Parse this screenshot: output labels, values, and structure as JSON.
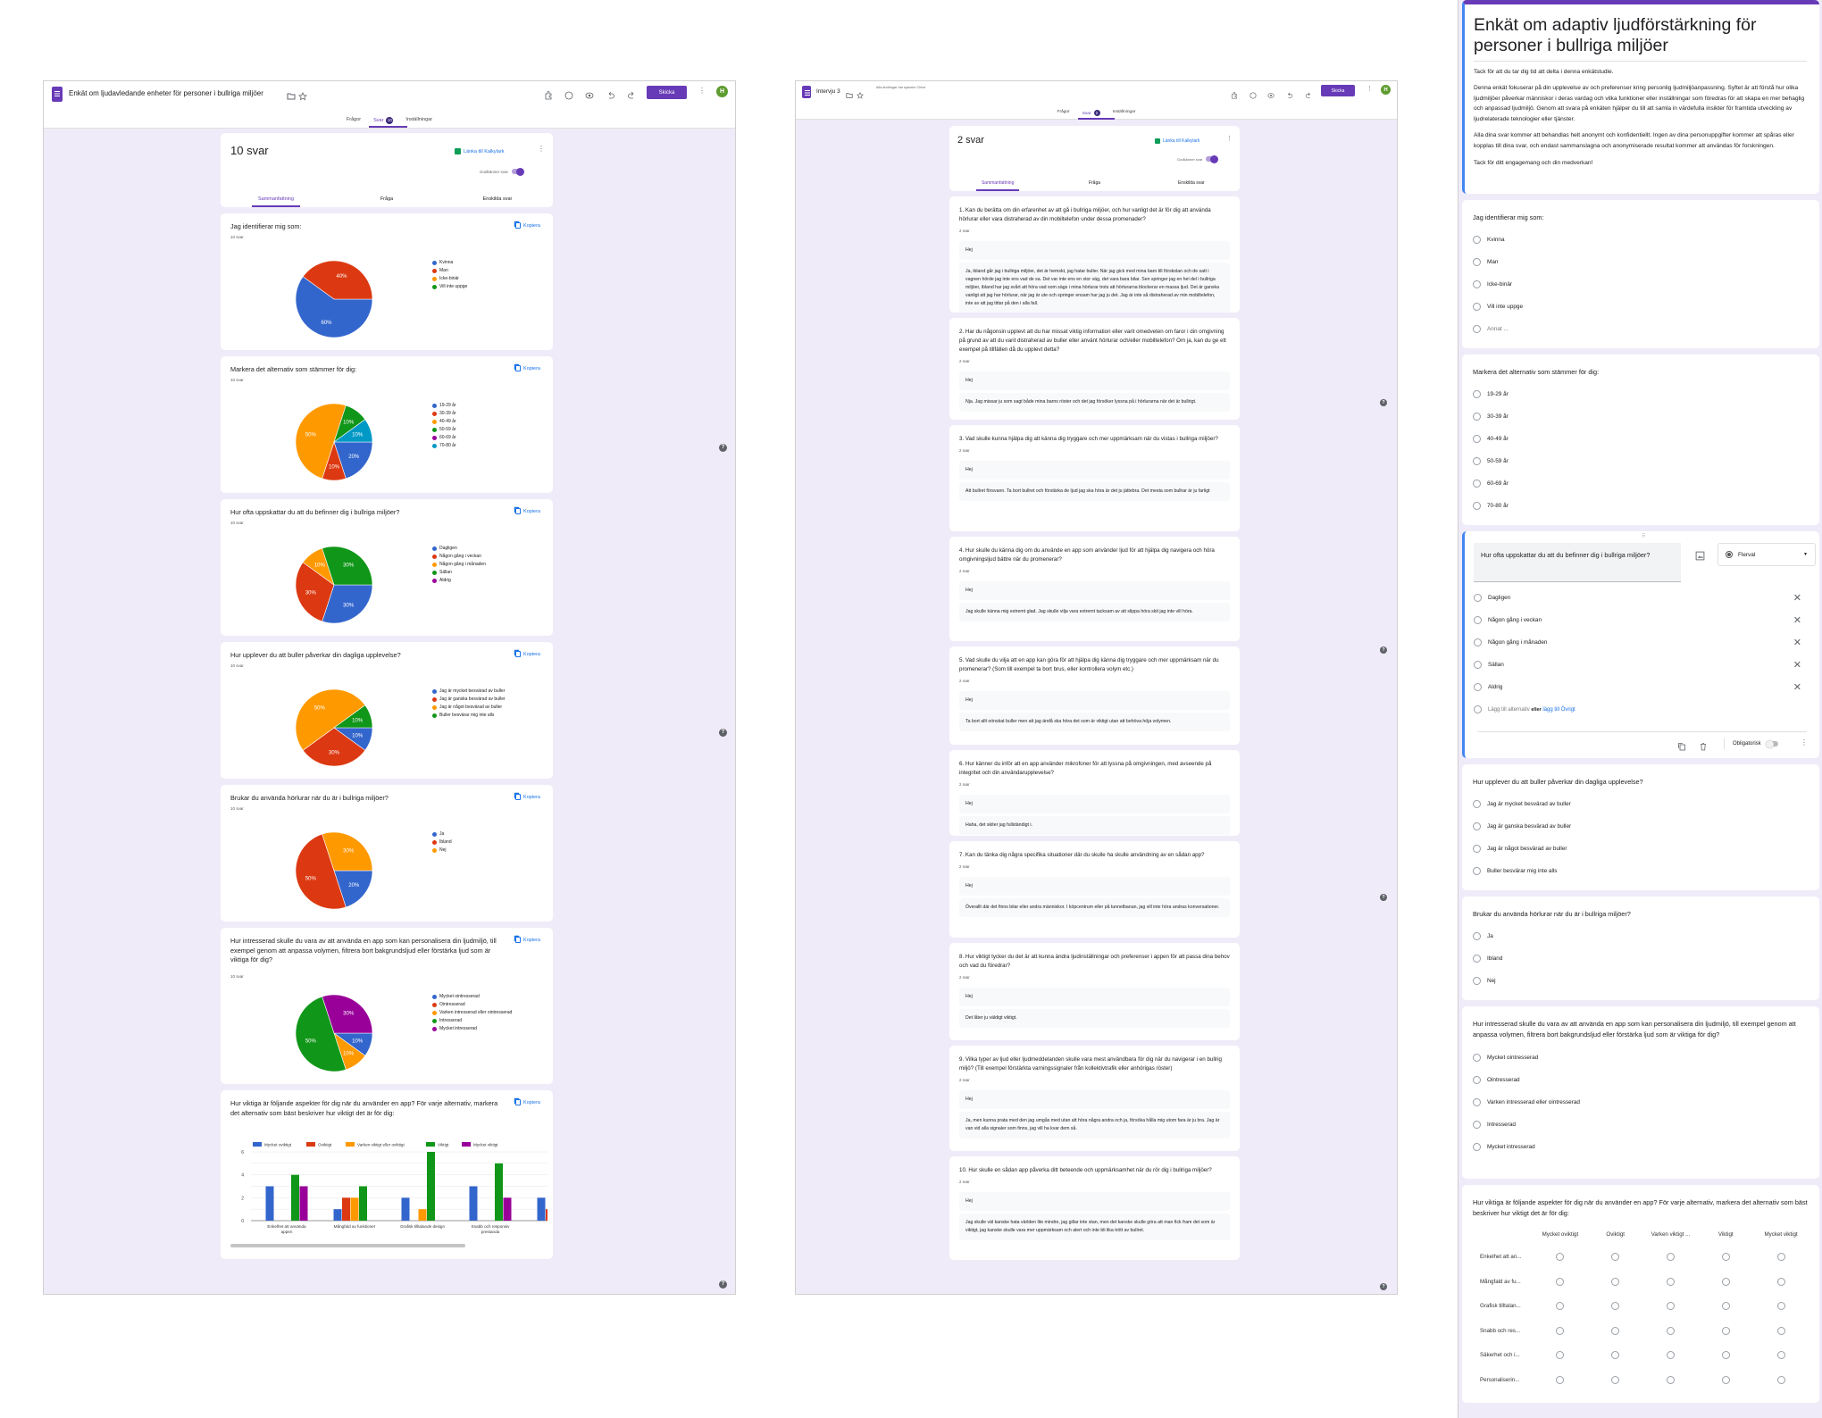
{
  "colors": {
    "accent": "#673ab7",
    "link": "#1a73e8",
    "background": "#f0ebf8",
    "active_border": "#4285f4",
    "series": [
      "#3366cc",
      "#dc3912",
      "#ff9900",
      "#109618",
      "#990099",
      "#0099c6"
    ]
  },
  "p1": {
    "title": "Enkät om ljudavledande enheter för personer i bullriga miljöer",
    "tabs": [
      "Frågor",
      "Svar",
      "Inställningar"
    ],
    "badge": "10",
    "send": "Skicka",
    "avatar": "H",
    "summary": {
      "count": "10 svar",
      "link": "Länka till Kalkylark",
      "accepting": "Godkänner svar",
      "subtabs": [
        "Sammanfattning",
        "Fråga",
        "Enskilda svar"
      ]
    },
    "copy": "Kopiera"
  },
  "p2": {
    "title": "Intervju 3",
    "saved": "Alla ändringar har sparats i Drive",
    "tabs": [
      "Frågor",
      "Svar",
      "Inställningar"
    ],
    "badge": "2",
    "send": "Skicka",
    "avatar": "H",
    "summary": {
      "count": "2 svar",
      "link": "Länka till Kalkylark",
      "accepting": "Godkänner svar",
      "subtabs": [
        "Sammanfattning",
        "Fråga",
        "Enskilda svar"
      ]
    },
    "questions": [
      {
        "q": "1. Kan du berätta om din erfarenhet av att gå i bullriga miljöer, och hur vanligt det är för dig att använda hörlurar eller vara distraherad av din mobiltelefon under dessa promenader?",
        "count": "2 svar",
        "responses": [
          "Hej",
          "Ja, ibland går jag i bullriga miljöer, det är hemskt, jag hatar buller. När jag gick med mina barn till förskolan och de satt i vagnen hörde jag inte ens vad de sa. Det var inte ens en stor väg, det vara bara bilar. Sen springer jag en hel del i bullriga miljöer, ibland har jag svårt att höra vad som sägs i mina hörlurar trots att hörlurarna blockerar en massa ljud. Det är ganska vanligt att jag har hörlurar, när jag är ute och springer ensam har jag ju det. Jag är inte så distraherad av min mobiltelefon, inte av att jag tittar på den i alla fall."
        ]
      },
      {
        "q": "2. Har du någonsin upplevt att du har missat viktig information eller varit omedveten om faror i din omgivning på grund av att du varit distraherad av buller eller använt hörlurar och/eller mobiltelefon? Om ja, kan du ge ett exempel på tillfällen då du upplevt detta?",
        "count": "2 svar",
        "responses": [
          "Hej",
          "Nja. Jag missar ju som sagt både mina barns röster och det jag försöker lyssna på i hörlurarna när det är bullrigt."
        ]
      },
      {
        "q": "3. Vad skulle kunna hjälpa dig att känna dig tryggare och mer uppmärksam när du vistas i bullriga miljöer?",
        "count": "2 svar",
        "responses": [
          "Hej",
          "Att bullret försvann. Ta bort bullret och förstärka de ljud jag ska höra är det ju jättebra. Det mesta som bullrar är ju farligt"
        ]
      },
      {
        "q": "4. Hur skulle du känna dig om du använde en app som använder ljud för att hjälpa dig navigera och höra omgivningsljud bättre när du promenerar?",
        "count": "2 svar",
        "responses": [
          "Hej",
          "Jag skulle känna mig extremt glad. Jag skulle vilja vara extremt tacksam av att slippa höra skit jag inte vill höra."
        ]
      },
      {
        "q": "5. Vad skulle du vilja att en app kan göra för att hjälpa dig känna dig tryggare och mer uppmärksam när du promenerar? (Som till exempel ta bort brus, eller kontrollera volym etc.)",
        "count": "2 svar",
        "responses": [
          "Hej",
          "Ta bort allt oönskat buller men att jag ändå ska höra det som är viktigt utan att behöva höja volymen."
        ]
      },
      {
        "q": "6. Hur känner du inför att en app använder mikrofoner för att lyssna på omgivningen, med avseende på integritet och din användarupplevelse?",
        "count": "2 svar",
        "responses": [
          "Hej",
          "Haha, det skiter jag fullständigt i."
        ]
      },
      {
        "q": "7. Kan du tänka dig några specifika situationer där du skulle ha skulle användning av en sådan app?",
        "count": "2 svar",
        "responses": [
          "Hej",
          "Överallt där det finns bilar eller andra människor. I köpcentrum eller på tunnelbanan, jag vill inte höra andras konversationer."
        ]
      },
      {
        "q": "8. Hur viktigt tycker du det är att kunna ändra ljudinställningar och preferenser i appen för att passa dina behov och vad du föredrar?",
        "count": "2 svar",
        "responses": [
          "Hej",
          "Det låter ju väldigt viktigt."
        ]
      },
      {
        "q": "9. Vilka typer av ljud eller ljudmeddelanden skulle vara mest användbara för dig när du navigerar i en bullrig miljö? (Till exempel förstärkta varningssignaler från kollektivtrafik eller anhörigas röster)",
        "count": "2 svar",
        "responses": [
          "Hej",
          "Ja, men kunna prata med den jag umgås med utan att höra några andra och ja, försöka hålla mig utom fara är ju bra. Jag är van vid alla signaler som finns, jag vill ha kvar dem så."
        ]
      },
      {
        "q": "10. Hur skulle en sådan app påverka ditt beteende och uppmärksamhet när du rör dig i bullriga miljöer?",
        "count": "2 svar",
        "responses": [
          "Hej",
          "Jag skulle väl kanske hata världen lite mindre, jag gillar inte stan, men det kanske skulle göra att man fick fram det som är viktigt, jag kanske skulle vara mer uppmärksam och alert och inte bli lika trött av bullret."
        ]
      }
    ]
  },
  "p3": {
    "title": "Enkät om adaptiv ljudförstärkning för personer i bullriga miljöer",
    "description": [
      "Tack för att du tar dig tid att delta i denna enkätstudie.",
      "Denna enkät fokuserar på din upplevelse av och preferenser kring personlig ljudmiljöanpassning. Syftet är att förstå hur olika ljudmiljöer påverkar människor i deras vardag och vilka funktioner eller inställningar som föredras för att skapa en mer behaglig och anpassad ljudmiljö. Genom att svara på enkäten hjälper du till att samla in värdefulla insikter för framtida utveckling av ljudrelaterade teknologier eller tjänster.",
      "Alla dina svar kommer att behandlas helt anonymt och konfidentiellt. Ingen av dina personuppgifter kommer att spåras eller kopplas till dina svar, och endast sammanslagna och anonymiserade resultat kommer att användas för forskningen.",
      "Tack för ditt engagemang och din medverkan!"
    ],
    "q1": {
      "title": "Jag identifierar mig som:",
      "options": [
        "Kvinna",
        "Man",
        "Icke-binär",
        "Vill inte uppge"
      ],
      "other": "Annat ..."
    },
    "q2": {
      "title": "Markera det alternativ som stämmer för dig:",
      "options": [
        "19-29 år",
        "30-39 år",
        "40-49 år",
        "50-59 år",
        "60-69 år",
        "70-80 år"
      ]
    },
    "active": {
      "title": "Hur ofta uppskattar du att du befinner dig i bullriga miljöer?",
      "type": "Flerval",
      "options": [
        "Dagligen",
        "Någon gång i veckan",
        "Någon gång i månaden",
        "Sällan",
        "Aldrig"
      ],
      "add": "Lägg till alternativ",
      "or": "eller",
      "add_other": "lägg till Övrigt",
      "required": "Obligatorisk",
      "required_on": false
    },
    "q4": {
      "title": "Hur upplever du att buller påverkar din dagliga upplevelse?",
      "options": [
        "Jag är mycket besvärad av buller",
        "Jag är ganska besvärad av buller",
        "Jag är något besvärad av buller",
        "Buller besvärar mig inte alls"
      ]
    },
    "q5": {
      "title": "Brukar du använda hörlurar när du är i bullriga miljöer?",
      "options": [
        "Ja",
        "Ibland",
        "Nej"
      ]
    },
    "q6": {
      "title": "Hur intresserad skulle du vara av att använda en app som kan personalisera din ljudmiljö, till exempel genom att anpassa volymen, filtrera bort bakgrundsljud eller förstärka ljud som är viktiga för dig?",
      "options": [
        "Mycket ointresserad",
        "Ointresserad",
        "Varken intresserad eller ointresserad",
        "Intresserad",
        "Mycket intresserad"
      ]
    },
    "grid": {
      "title": "Hur viktiga är följande aspekter för dig när du använder en app? För varje alternativ, markera det alternativ som bäst beskriver hur viktigt det är för dig:",
      "columns": [
        "Mycket oviktigt",
        "Oviktigt",
        "Varken viktigt ...",
        "Viktigt",
        "Mycket viktigt"
      ],
      "rows": [
        "Enkelhet att an...",
        "Mångfald av fu...",
        "Grafisk tilltalan...",
        "Snabb och res...",
        "Säkerhet och i...",
        "Personaliserin..."
      ]
    }
  },
  "chart_data": [
    {
      "type": "pie",
      "title": "Jag identifierar mig som:",
      "count": "10 svar",
      "categories": [
        "Kvinna",
        "Man",
        "Icke-binär",
        "Vill inte uppge"
      ],
      "values": [
        60,
        40,
        0,
        0
      ],
      "unit": "%"
    },
    {
      "type": "pie",
      "title": "Markera det alternativ som stämmer för dig:",
      "count": "10 svar",
      "categories": [
        "19-29 år",
        "30-39 år",
        "40-49 år",
        "50-59 år",
        "60-69 år",
        "70-80 år"
      ],
      "values": [
        20,
        10,
        50,
        10,
        0,
        10
      ],
      "unit": "%"
    },
    {
      "type": "pie",
      "title": "Hur ofta uppskattar du att du befinner dig i bullriga miljöer?",
      "count": "10 svar",
      "categories": [
        "Dagligen",
        "Någon gång i veckan",
        "Någon gång i månaden",
        "Sällan",
        "Aldrig"
      ],
      "values": [
        30,
        30,
        10,
        30,
        0
      ],
      "unit": "%"
    },
    {
      "type": "pie",
      "title": "Hur upplever du att buller påverkar din dagliga upplevelse?",
      "count": "10 svar",
      "categories": [
        "Jag är mycket besvärad av buller",
        "Jag är ganska besvärad av buller",
        "Jag är något besvärad av buller",
        "Buller besvärar mig inte alls"
      ],
      "values": [
        10,
        30,
        50,
        10
      ],
      "unit": "%"
    },
    {
      "type": "pie",
      "title": "Brukar du använda hörlurar när du är i bullriga miljöer?",
      "count": "10 svar",
      "categories": [
        "Ja",
        "Ibland",
        "Nej"
      ],
      "values": [
        20,
        50,
        30
      ],
      "unit": "%"
    },
    {
      "type": "pie",
      "title": "Hur intresserad skulle du vara av att använda en app som kan personalisera din ljudmiljö, till exempel genom att anpassa volymen, filtrera bort bakgrundsljud eller förstärka ljud som är viktiga för dig?",
      "count": "10 svar",
      "categories": [
        "Mycket ointresserad",
        "Ointresserad",
        "Varken intresserad eller ointresserad",
        "Intresserad",
        "Mycket intresserad"
      ],
      "values": [
        10,
        0,
        10,
        50,
        30
      ],
      "unit": "%"
    },
    {
      "type": "bar",
      "title": "Hur viktiga är följande aspekter för dig när du använder en app? För varje alternativ, markera det alternativ som bäst beskriver hur viktigt det är för dig:",
      "categories": [
        "Enkelhet att använda\nappen",
        "Mångfald av funktioner",
        "Grafisk tilltalande design",
        "Snabb och responsiv\nprestanda",
        "Säkerh"
      ],
      "series": [
        {
          "name": "Mycket oviktigt",
          "values": [
            3,
            1,
            2,
            3,
            2
          ]
        },
        {
          "name": "Oviktigt",
          "values": [
            0,
            2,
            0,
            0,
            1
          ]
        },
        {
          "name": "Varken viktigt eller oviktigt",
          "values": [
            0,
            2,
            1,
            0,
            null
          ]
        },
        {
          "name": "Viktigt",
          "values": [
            4,
            3,
            6,
            5,
            null
          ]
        },
        {
          "name": "Mycket viktigt",
          "values": [
            3,
            0,
            0,
            2,
            null
          ]
        }
      ],
      "ylim": [
        0,
        6
      ],
      "yticks": [
        "0",
        "2",
        "4",
        "6"
      ],
      "grid": true,
      "legend": "top"
    }
  ]
}
